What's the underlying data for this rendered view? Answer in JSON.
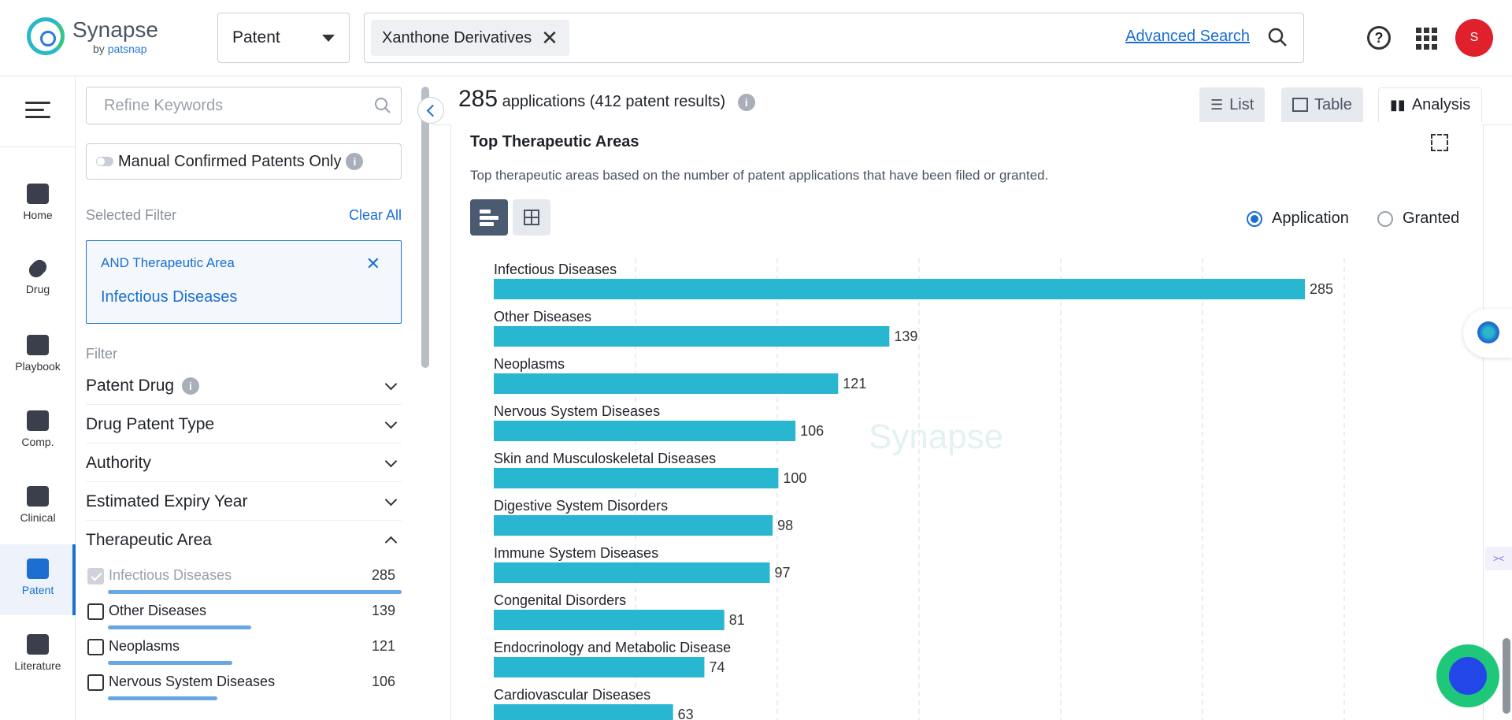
{
  "brand": {
    "name": "Synapse",
    "sub_by": "by",
    "sub_brand": "patsnap"
  },
  "header": {
    "type_select": "Patent",
    "search_chip": "Xanthone Derivatives",
    "advanced_search": "Advanced Search",
    "avatar_initial": "S"
  },
  "nav": {
    "items": [
      {
        "label": "Home",
        "icon": "home-icon"
      },
      {
        "label": "Drug",
        "icon": "pill-icon"
      },
      {
        "label": "Playbook",
        "icon": "playbook-icon"
      },
      {
        "label": "Comp.",
        "icon": "competition-icon"
      },
      {
        "label": "Clinical",
        "icon": "clinical-icon"
      },
      {
        "label": "Patent",
        "icon": "patent-icon"
      },
      {
        "label": "Literature",
        "icon": "literature-icon"
      }
    ]
  },
  "filters": {
    "refine_placeholder": "Refine Keywords",
    "manual_toggle": "Manual Confirmed Patents Only",
    "selected_title": "Selected Filter",
    "clear_all": "Clear All",
    "selected_label": "AND Therapeutic Area",
    "selected_value": "Infectious Diseases",
    "filter_title": "Filter",
    "facets": [
      "Patent Drug",
      "Drug Patent Type",
      "Authority",
      "Estimated Expiry Year",
      "Therapeutic Area"
    ],
    "therapeutic_areas": [
      {
        "label": "Infectious Diseases",
        "count": "285",
        "checked": true
      },
      {
        "label": "Other Diseases",
        "count": "139",
        "checked": false
      },
      {
        "label": "Neoplasms",
        "count": "121",
        "checked": false
      },
      {
        "label": "Nervous System Diseases",
        "count": "106",
        "checked": false
      }
    ]
  },
  "results": {
    "count": "285",
    "text": "applications (412 patent results)",
    "views": [
      "List",
      "Table",
      "Analysis"
    ],
    "active_view": "Analysis"
  },
  "card": {
    "title": "Top Therapeutic Areas",
    "subtitle": "Top therapeutic areas based on the number of patent applications that have been filed or granted.",
    "radio_application": "Application",
    "radio_granted": "Granted"
  },
  "colors": {
    "bar": "#29b6d1",
    "accent": "#1a6fd1"
  },
  "chart_data": {
    "type": "bar",
    "orientation": "horizontal",
    "categories": [
      "Infectious Diseases",
      "Other Diseases",
      "Neoplasms",
      "Nervous System Diseases",
      "Skin and Musculoskeletal Diseases",
      "Digestive System Disorders",
      "Immune System Diseases",
      "Congenital Disorders",
      "Endocrinology and Metabolic Disease",
      "Cardiovascular Diseases"
    ],
    "values": [
      285,
      139,
      121,
      106,
      100,
      98,
      97,
      81,
      74,
      63
    ],
    "xlim": [
      0,
      300
    ],
    "grid": true,
    "data_labels": true
  }
}
